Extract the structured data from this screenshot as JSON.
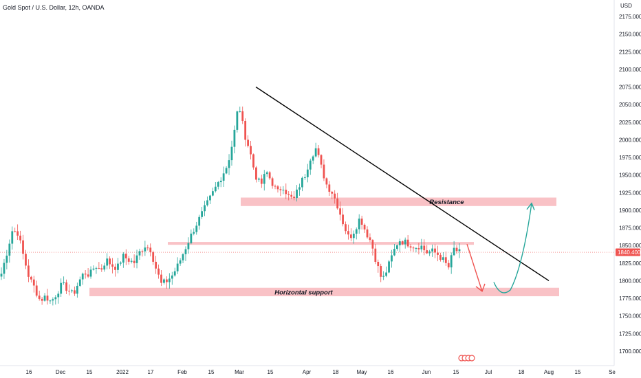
{
  "header": {
    "title": "Gold Spot / U.S. Dollar, 12h, OANDA"
  },
  "chart_data": {
    "type": "candlestick",
    "title": "Gold Spot / U.S. Dollar, 12h, OANDA",
    "currency_label": "USD",
    "last_price": "1840.400",
    "y_ticks": [
      "2175.000",
      "2150.000",
      "2125.000",
      "2100.000",
      "2075.000",
      "2050.000",
      "2025.000",
      "2000.000",
      "1975.000",
      "1950.000",
      "1925.000",
      "1900.000",
      "1875.000",
      "1850.000",
      "1825.000",
      "1800.000",
      "1775.000",
      "1750.000",
      "1725.000",
      "1700.000"
    ],
    "x_ticks": [
      "16",
      "Dec",
      "15",
      "2022",
      "17",
      "Feb",
      "15",
      "Mar",
      "15",
      "Apr",
      "18",
      "May",
      "16",
      "Jun",
      "15",
      "Jul",
      "18",
      "Aug",
      "15",
      "Se"
    ],
    "ylim": [
      1690,
      2190
    ],
    "anchors": [
      1810,
      1840,
      1872,
      1868,
      1835,
      1805,
      1790,
      1772,
      1778,
      1770,
      1782,
      1795,
      1788,
      1780,
      1798,
      1812,
      1808,
      1822,
      1815,
      1830,
      1822,
      1818,
      1835,
      1830,
      1825,
      1840,
      1850,
      1845,
      1818,
      1795,
      1800,
      1808,
      1822,
      1840,
      1858,
      1875,
      1890,
      1905,
      1920,
      1935,
      1950,
      1965,
      2000,
      2052,
      2010,
      1985,
      1950,
      1935,
      1955,
      1940,
      1925,
      1935,
      1920,
      1915,
      1935,
      1950,
      1975,
      1988,
      1960,
      1935,
      1925,
      1905,
      1880,
      1860,
      1872,
      1890,
      1870,
      1855,
      1825,
      1800,
      1818,
      1840,
      1858,
      1855,
      1852,
      1848,
      1850,
      1840,
      1842,
      1838,
      1830,
      1818,
      1845,
      1840
    ],
    "zones": [
      {
        "label": "Resistance",
        "y_top": 1918,
        "y_bottom": 1906
      },
      {
        "label": "",
        "y_top": 1855,
        "y_bottom": 1851
      },
      {
        "label": "Horizontal support",
        "y_top": 1790,
        "y_bottom": 1778
      }
    ],
    "trendline": {
      "start_price": 2075,
      "end_price": 1800
    },
    "projection_down": {
      "from_price": 1852,
      "to_price": 1785
    },
    "projection_up": {
      "from_price": 1798,
      "to_price": 1910
    },
    "colors": {
      "up": "#26a69a",
      "down": "#ef5350",
      "zone": "#f8bbc0",
      "trendline": "#000000",
      "tag": "#ef5350",
      "axis_text": "#131722"
    }
  }
}
